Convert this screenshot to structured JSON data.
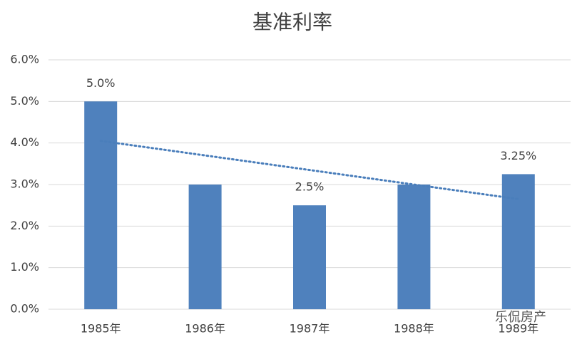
{
  "chart_data": {
    "type": "bar",
    "title": "基准利率",
    "categories": [
      "1985年",
      "1986年",
      "1987年",
      "1988年",
      "1989年"
    ],
    "values": [
      5.0,
      3.0,
      2.5,
      3.0,
      3.25
    ],
    "value_labels": [
      "5.0%",
      null,
      "2.5%",
      null,
      "3.25%"
    ],
    "color": "#4f81bd",
    "ylim": [
      0,
      6
    ],
    "yticks": [
      {
        "value": 0,
        "label": "0.0%"
      },
      {
        "value": 1,
        "label": "1.0%"
      },
      {
        "value": 2,
        "label": "2.0%"
      },
      {
        "value": 3,
        "label": "3.0%"
      },
      {
        "value": 4,
        "label": "4.0%"
      },
      {
        "value": 5,
        "label": "5.0%"
      },
      {
        "value": 6,
        "label": "6.0%"
      }
    ],
    "grid": true,
    "trendline": {
      "values": [
        4.05,
        2.65
      ],
      "color": "#4a7ebb"
    },
    "watermark": "乐侃房产"
  }
}
